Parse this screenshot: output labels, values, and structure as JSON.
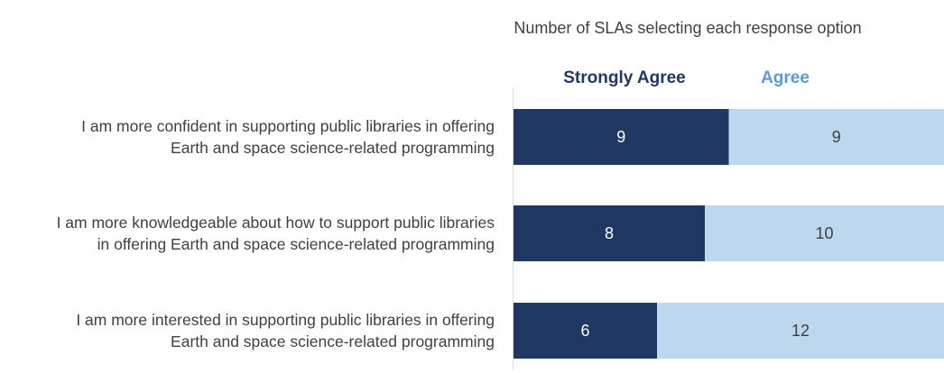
{
  "chart_data": {
    "type": "stacked-bar-horizontal",
    "title": "Number of SLAs selecting each response option",
    "categories": [
      "I am more confident in supporting public libraries in offering Earth and space science-related programming",
      "I am more knowledgeable about how to support public libraries in offering Earth and space science-related programming",
      "I am more interested in supporting public libraries in offering Earth and space science-related programming"
    ],
    "series": [
      {
        "name": "Strongly Agree",
        "color": "#203864",
        "values": [
          9,
          8,
          6
        ]
      },
      {
        "name": "Agree",
        "color": "#bdd7ee",
        "values": [
          9,
          10,
          12
        ]
      }
    ]
  }
}
